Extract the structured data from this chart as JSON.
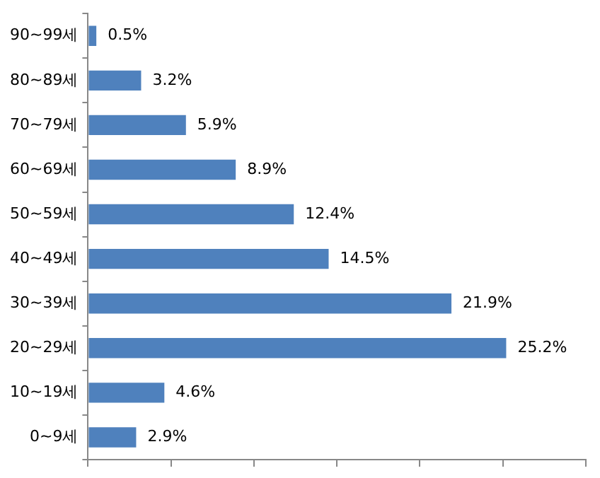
{
  "chart_data": {
    "type": "bar",
    "orientation": "horizontal",
    "categories": [
      "90~99세",
      "80~89세",
      "70~79세",
      "60~69세",
      "50~59세",
      "40~49세",
      "30~39세",
      "20~29세",
      "10~19세",
      "0~9세"
    ],
    "values": [
      0.5,
      3.2,
      5.9,
      8.9,
      12.4,
      14.5,
      21.9,
      25.2,
      4.6,
      2.9
    ],
    "value_labels": [
      "0.5%",
      "3.2%",
      "5.9%",
      "8.9%",
      "12.4%",
      "14.5%",
      "21.9%",
      "25.2%",
      "4.6%",
      "2.9%"
    ],
    "color": "#4f81bd",
    "xlim": [
      0,
      30
    ],
    "xticks": [
      {
        "value": 0,
        "label": null
      },
      {
        "value": 5,
        "label": null
      },
      {
        "value": 10,
        "label": null
      },
      {
        "value": 15,
        "label": null
      },
      {
        "value": 20,
        "label": null
      },
      {
        "value": 25,
        "label": null
      },
      {
        "value": 30,
        "label": null
      }
    ],
    "tick_labels": "y",
    "grid": false,
    "legend": false
  }
}
